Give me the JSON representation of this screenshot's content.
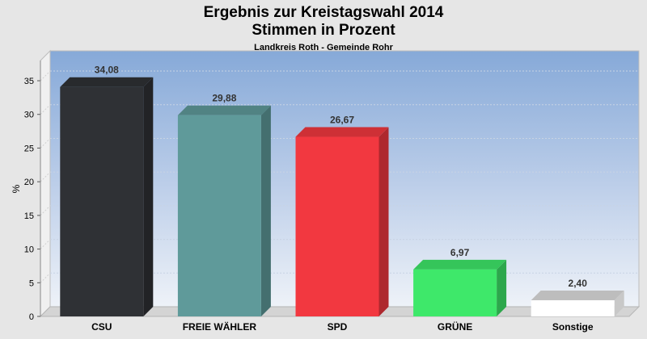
{
  "chart_data": {
    "type": "bar",
    "title": "Ergebnis zur Kreistagswahl 2014",
    "title_line2": "Stimmen in Prozent",
    "subtitle": "Landkreis Roth - Gemeinde Rohr",
    "ylabel": "%",
    "xlabel": "",
    "ylim": [
      0,
      38
    ],
    "yticks": [
      0,
      5,
      10,
      15,
      20,
      25,
      30,
      35
    ],
    "grid": true,
    "categories": [
      "CSU",
      "FREIE WÄHLER",
      "SPD",
      "GRÜNE",
      "Sonstige"
    ],
    "values": [
      34.08,
      29.88,
      26.67,
      6.97,
      2.4
    ],
    "value_labels": [
      "34,08",
      "29,88",
      "26,67",
      "6,97",
      "2,40"
    ],
    "colors": [
      "#2f3135",
      "#5f9a9a",
      "#f23840",
      "#3ee86a",
      "#ffffff"
    ]
  }
}
